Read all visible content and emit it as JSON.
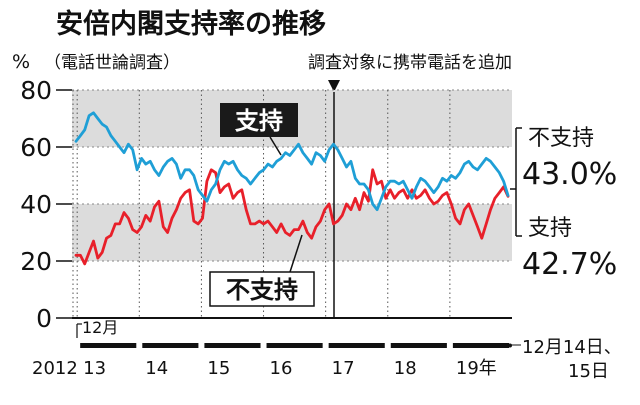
{
  "title": "安倍内閣支持率の推移",
  "subtitle": "（電話世論調査）",
  "unit": "%",
  "annotation": "調査対象に携帯電話を追加",
  "start_year": "2012",
  "start_month": "12月",
  "end_note_line1": "12月14日、",
  "end_note_line2": "15日",
  "colors": {
    "support": "#e8202a",
    "disapprove": "#1f9fd6",
    "band": "#dcdcdc"
  },
  "chart_data": {
    "type": "line",
    "ylim": [
      0,
      80
    ],
    "y_ticks": [
      "0",
      "20",
      "40",
      "60",
      "80"
    ],
    "x_ticks": [
      "13",
      "14",
      "15",
      "16",
      "17",
      "18",
      "19年"
    ],
    "series": [
      {
        "name": "支持",
        "label": "支持",
        "final_value": "42.7%",
        "values": [
          22,
          22,
          19,
          23,
          27,
          21,
          23,
          28,
          29,
          33,
          33,
          37,
          35,
          31,
          30,
          32,
          36,
          34,
          39,
          41,
          32,
          30,
          35,
          38,
          42,
          44,
          45,
          34,
          33,
          35,
          48,
          52,
          51,
          44,
          46,
          47,
          42,
          44,
          45,
          38,
          33,
          33,
          34,
          33,
          34,
          32,
          30,
          33,
          30,
          29,
          31,
          31,
          34,
          30,
          28,
          32,
          34,
          38,
          40,
          33,
          34,
          36,
          40,
          38,
          42,
          38,
          44,
          41,
          52,
          47,
          48,
          42,
          45,
          42,
          44,
          45,
          42,
          45,
          42,
          43,
          45,
          42,
          40,
          41,
          43,
          44,
          40,
          35,
          33,
          38,
          40,
          36,
          32,
          28,
          33,
          38,
          42,
          44,
          46,
          42.7
        ]
      },
      {
        "name": "不支持",
        "label": "不支持",
        "final_value": "43.0%",
        "values": [
          62,
          64,
          66,
          71,
          72,
          70,
          68,
          67,
          64,
          62,
          60,
          58,
          61,
          59,
          52,
          56,
          54,
          55,
          52,
          50,
          53,
          55,
          56,
          54,
          49,
          52,
          52,
          50,
          45,
          43,
          41,
          45,
          47,
          52,
          55,
          54,
          55,
          52,
          50,
          49,
          47,
          49,
          51,
          52,
          54,
          53,
          55,
          56,
          58,
          57,
          59,
          61,
          58,
          56,
          54,
          58,
          57,
          55,
          59,
          61,
          59,
          56,
          53,
          55,
          49,
          47,
          47,
          45,
          40,
          38,
          42,
          46,
          48,
          48,
          47,
          48,
          45,
          42,
          46,
          49,
          48,
          46,
          44,
          46,
          49,
          48,
          50,
          49,
          51,
          54,
          55,
          53,
          52,
          54,
          56,
          55,
          53,
          51,
          48,
          43.0
        ]
      }
    ]
  }
}
